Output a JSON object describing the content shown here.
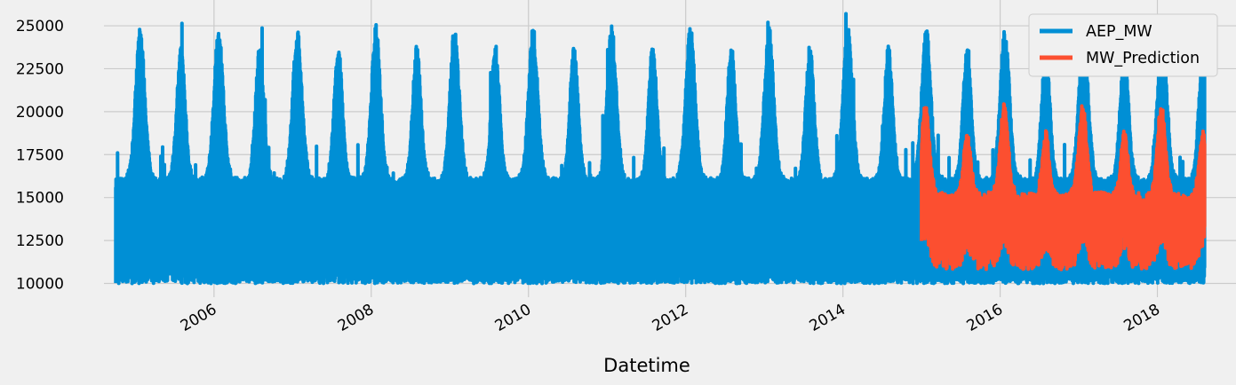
{
  "chart_data": {
    "type": "line",
    "title": "",
    "xlabel": "Datetime",
    "ylabel": "",
    "xlim": [
      2004.6,
      2019.0
    ],
    "ylim": [
      9200,
      26500
    ],
    "grid": true,
    "legend_position": "top-right",
    "x_ticks": [
      {
        "value": 2006,
        "label": "2006"
      },
      {
        "value": 2008,
        "label": "2008"
      },
      {
        "value": 2010,
        "label": "2010"
      },
      {
        "value": 2012,
        "label": "2012"
      },
      {
        "value": 2014,
        "label": "2014"
      },
      {
        "value": 2016,
        "label": "2016"
      },
      {
        "value": 2018,
        "label": "2018"
      }
    ],
    "y_ticks": [
      {
        "value": 10000,
        "label": "10000"
      },
      {
        "value": 12500,
        "label": "12500"
      },
      {
        "value": 15000,
        "label": "15000"
      },
      {
        "value": 17500,
        "label": "17500"
      },
      {
        "value": 20000,
        "label": "20000"
      },
      {
        "value": 22500,
        "label": "22500"
      },
      {
        "value": 25000,
        "label": "25000"
      }
    ],
    "series": [
      {
        "name": "AEP_MW",
        "color": "#008fd5",
        "x_start": 2004.75,
        "x_end": 2018.6,
        "base": 15000,
        "seasonal_amp": 1800,
        "peaks_year_fraction": [
          0.08,
          0.6
        ],
        "band_low": [
          10000,
          11000
        ],
        "band_high": [
          18000,
          25000
        ],
        "min": 9800,
        "max": 25700
      },
      {
        "name": "MW_Prediction",
        "color": "#fc4f30",
        "x_start": 2015.0,
        "x_end": 2018.6,
        "base": 15200,
        "seasonal_amp": 3800,
        "band_low": [
          10800,
          12800
        ],
        "band_high": [
          15800,
          20500
        ],
        "min": 10800,
        "max": 20500
      }
    ]
  }
}
